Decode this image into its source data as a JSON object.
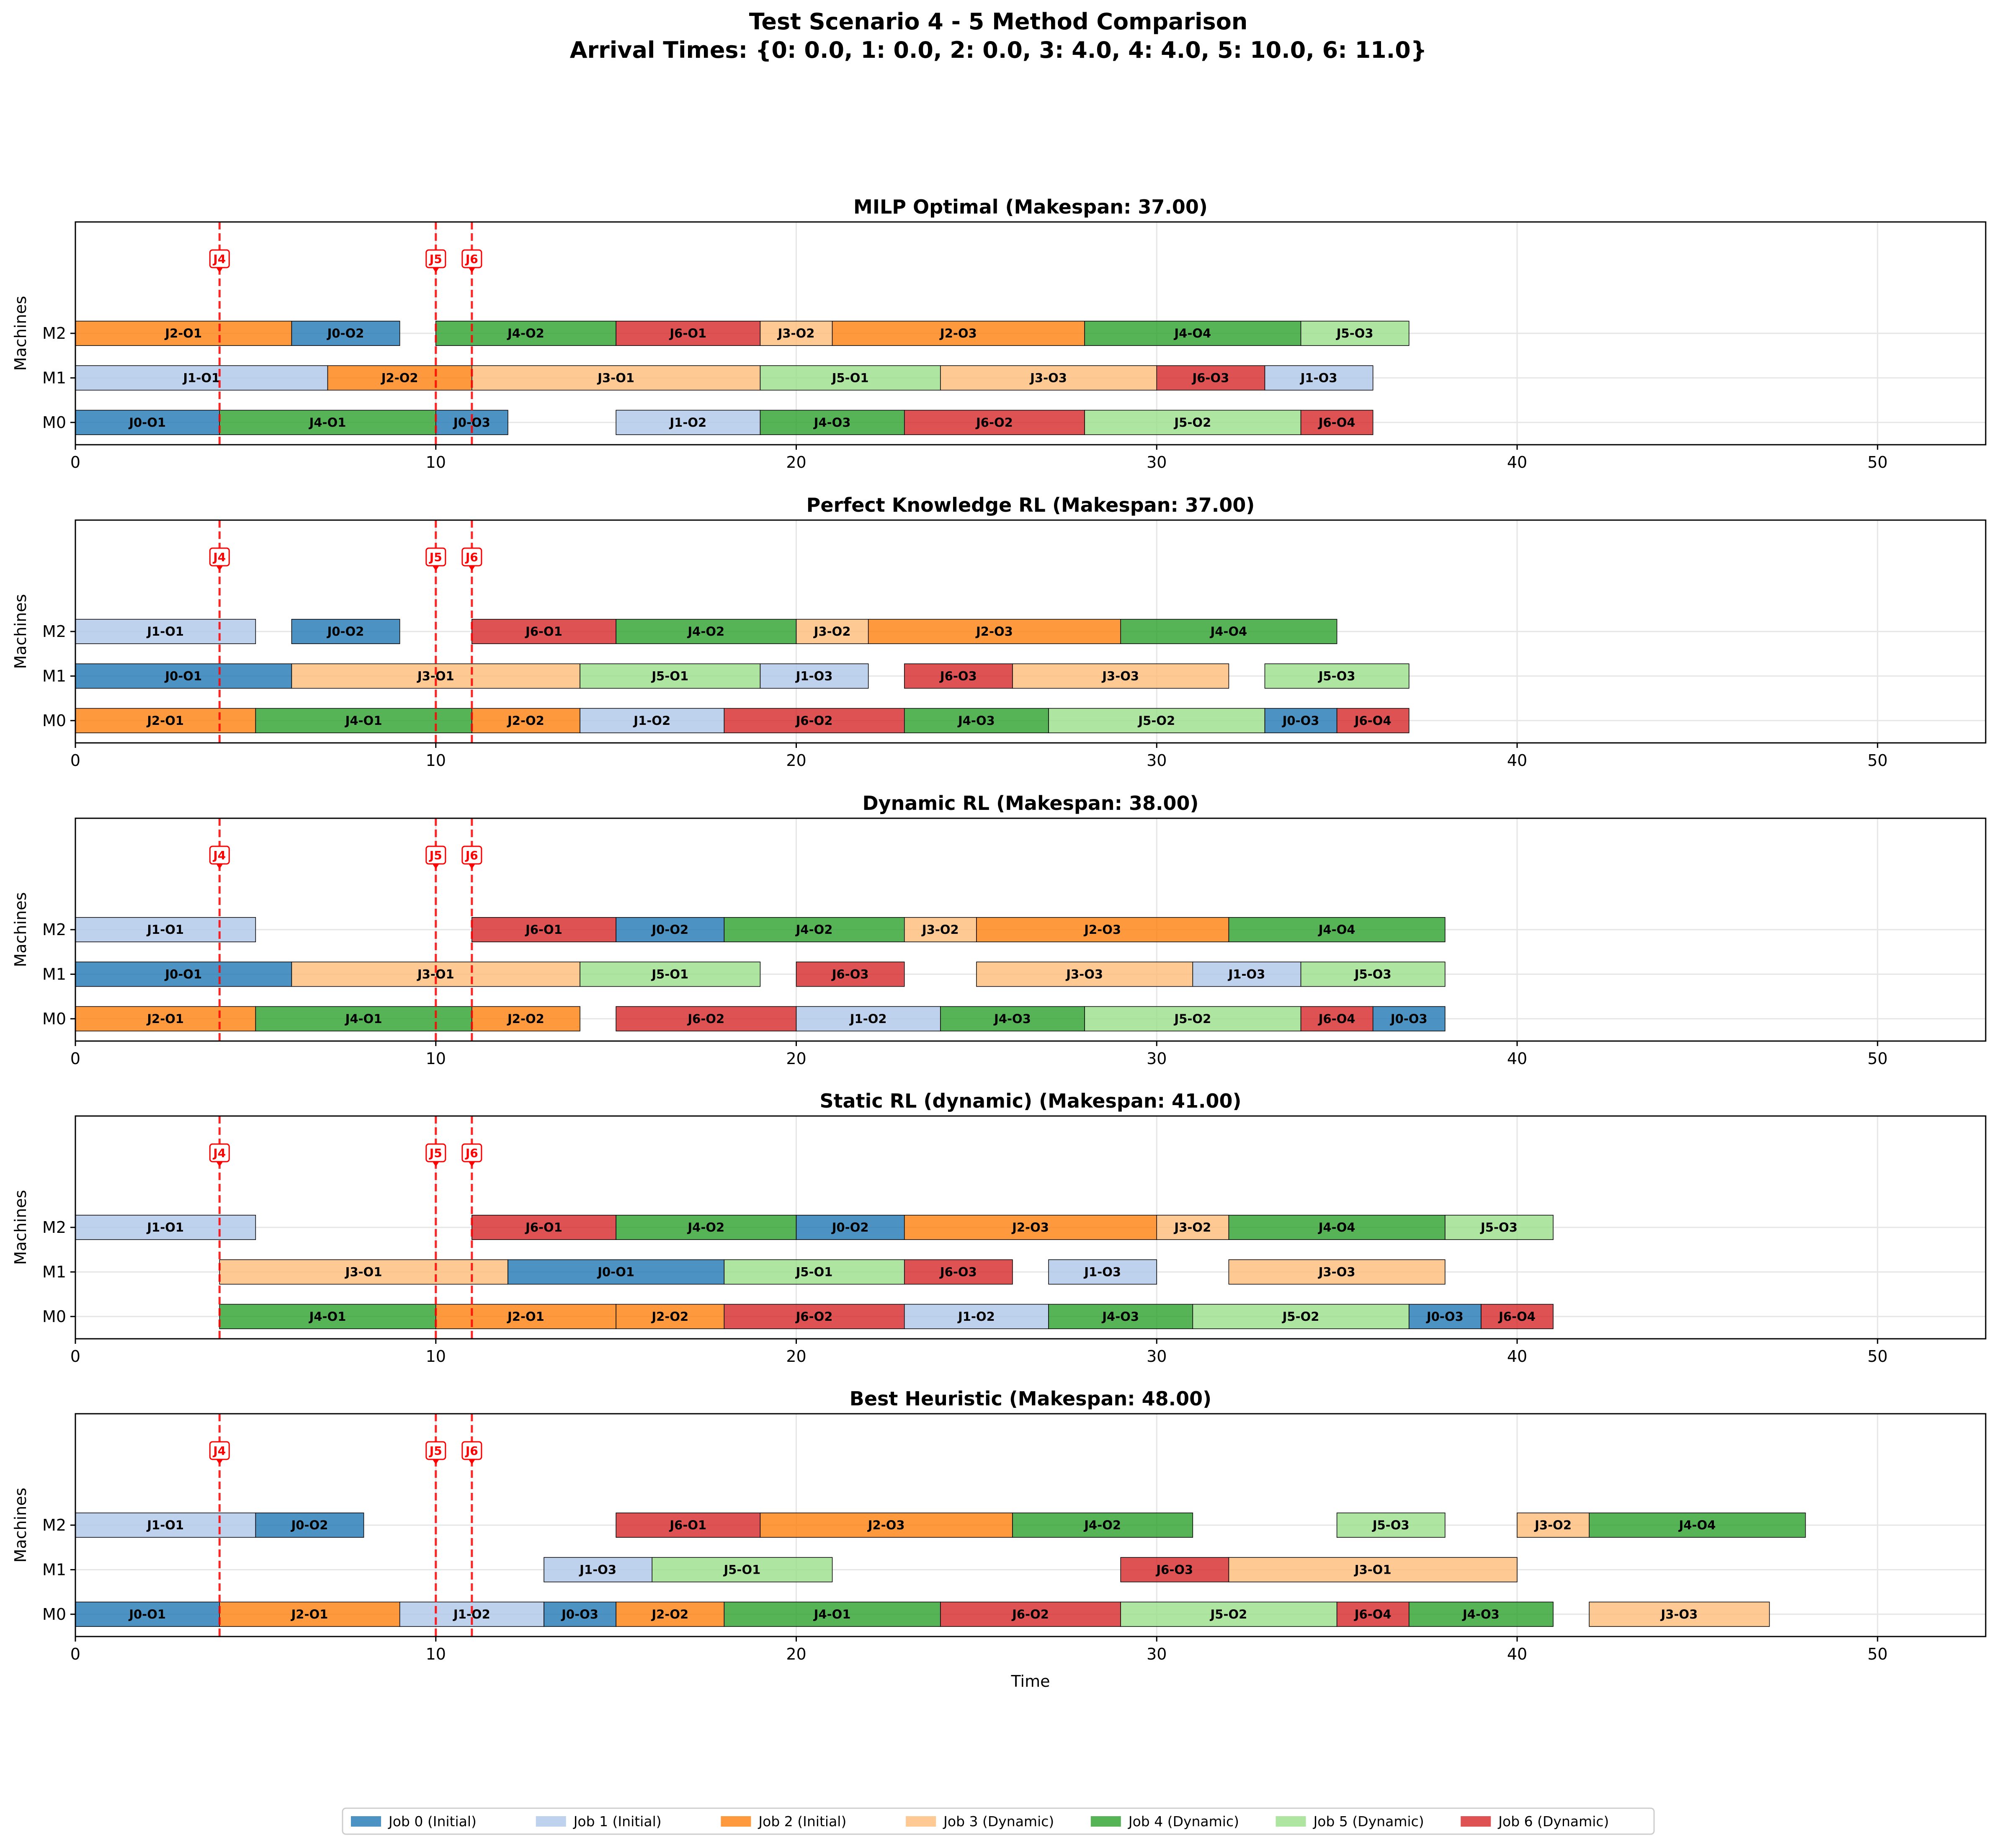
{
  "figure": {
    "title_line1": "Test Scenario 4 - 5 Method Comparison",
    "title_line2": "Arrival Times: {0: 0.0, 1: 0.0, 2: 0.0, 3: 4.0, 4: 4.0, 5: 10.0, 6: 11.0}"
  },
  "legend": [
    {
      "label": "Job 0 (Initial)",
      "color": "#1f77b4"
    },
    {
      "label": "Job 1 (Initial)",
      "color": "#aec7e8"
    },
    {
      "label": "Job 2 (Initial)",
      "color": "#ff7f0e"
    },
    {
      "label": "Job 3 (Dynamic)",
      "color": "#ffbb78"
    },
    {
      "label": "Job 4 (Dynamic)",
      "color": "#2ca02c"
    },
    {
      "label": "Job 5 (Dynamic)",
      "color": "#98df8a"
    },
    {
      "label": "Job 6 (Dynamic)",
      "color": "#d62728"
    }
  ],
  "chart_data": [
    {
      "type": "gantt",
      "title": "MILP Optimal (Makespan: 37.00)",
      "ylabel": "Machines",
      "xlabel": "",
      "xlim": [
        0,
        53
      ],
      "xticks": [
        0,
        10,
        20,
        30,
        40,
        50
      ],
      "machines": [
        "M0",
        "M1",
        "M2"
      ],
      "arrivals": [
        {
          "label": "J4",
          "t": 4
        },
        {
          "label": "J5",
          "t": 10
        },
        {
          "label": "J6",
          "t": 11
        }
      ],
      "tasks": [
        {
          "m": "M2",
          "job": 2,
          "label": "J2-O1",
          "start": 0,
          "end": 6
        },
        {
          "m": "M2",
          "job": 0,
          "label": "J0-O2",
          "start": 6,
          "end": 9
        },
        {
          "m": "M2",
          "job": 4,
          "label": "J4-O2",
          "start": 10,
          "end": 15
        },
        {
          "m": "M2",
          "job": 6,
          "label": "J6-O1",
          "start": 15,
          "end": 19
        },
        {
          "m": "M2",
          "job": 3,
          "label": "J3-O2",
          "start": 19,
          "end": 21
        },
        {
          "m": "M2",
          "job": 2,
          "label": "J2-O3",
          "start": 21,
          "end": 28
        },
        {
          "m": "M2",
          "job": 4,
          "label": "J4-O4",
          "start": 28,
          "end": 34
        },
        {
          "m": "M2",
          "job": 5,
          "label": "J5-O3",
          "start": 34,
          "end": 37
        },
        {
          "m": "M1",
          "job": 1,
          "label": "J1-O1",
          "start": 0,
          "end": 7
        },
        {
          "m": "M1",
          "job": 2,
          "label": "J2-O2",
          "start": 7,
          "end": 11
        },
        {
          "m": "M1",
          "job": 3,
          "label": "J3-O1",
          "start": 11,
          "end": 19
        },
        {
          "m": "M1",
          "job": 5,
          "label": "J5-O1",
          "start": 19,
          "end": 24
        },
        {
          "m": "M1",
          "job": 3,
          "label": "J3-O3",
          "start": 24,
          "end": 30
        },
        {
          "m": "M1",
          "job": 6,
          "label": "J6-O3",
          "start": 30,
          "end": 33
        },
        {
          "m": "M1",
          "job": 1,
          "label": "J1-O3",
          "start": 33,
          "end": 36
        },
        {
          "m": "M0",
          "job": 0,
          "label": "J0-O1",
          "start": 0,
          "end": 4
        },
        {
          "m": "M0",
          "job": 4,
          "label": "J4-O1",
          "start": 4,
          "end": 10
        },
        {
          "m": "M0",
          "job": 0,
          "label": "J0-O3",
          "start": 10,
          "end": 12
        },
        {
          "m": "M0",
          "job": 1,
          "label": "J1-O2",
          "start": 15,
          "end": 19
        },
        {
          "m": "M0",
          "job": 4,
          "label": "J4-O3",
          "start": 19,
          "end": 23
        },
        {
          "m": "M0",
          "job": 6,
          "label": "J6-O2",
          "start": 23,
          "end": 28
        },
        {
          "m": "M0",
          "job": 5,
          "label": "J5-O2",
          "start": 28,
          "end": 34
        },
        {
          "m": "M0",
          "job": 6,
          "label": "J6-O4",
          "start": 34,
          "end": 36
        }
      ]
    },
    {
      "type": "gantt",
      "title": "Perfect Knowledge RL (Makespan: 37.00)",
      "ylabel": "Machines",
      "xlabel": "",
      "xlim": [
        0,
        53
      ],
      "xticks": [
        0,
        10,
        20,
        30,
        40,
        50
      ],
      "machines": [
        "M0",
        "M1",
        "M2"
      ],
      "arrivals": [
        {
          "label": "J4",
          "t": 4
        },
        {
          "label": "J5",
          "t": 10
        },
        {
          "label": "J6",
          "t": 11
        }
      ],
      "tasks": [
        {
          "m": "M2",
          "job": 1,
          "label": "J1-O1",
          "start": 0,
          "end": 5
        },
        {
          "m": "M2",
          "job": 0,
          "label": "J0-O2",
          "start": 6,
          "end": 9
        },
        {
          "m": "M2",
          "job": 6,
          "label": "J6-O1",
          "start": 11,
          "end": 15
        },
        {
          "m": "M2",
          "job": 4,
          "label": "J4-O2",
          "start": 15,
          "end": 20
        },
        {
          "m": "M2",
          "job": 3,
          "label": "J3-O2",
          "start": 20,
          "end": 22
        },
        {
          "m": "M2",
          "job": 2,
          "label": "J2-O3",
          "start": 22,
          "end": 29
        },
        {
          "m": "M2",
          "job": 4,
          "label": "J4-O4",
          "start": 29,
          "end": 35
        },
        {
          "m": "M1",
          "job": 0,
          "label": "J0-O1",
          "start": 0,
          "end": 6
        },
        {
          "m": "M1",
          "job": 3,
          "label": "J3-O1",
          "start": 6,
          "end": 14
        },
        {
          "m": "M1",
          "job": 5,
          "label": "J5-O1",
          "start": 14,
          "end": 19
        },
        {
          "m": "M1",
          "job": 1,
          "label": "J1-O3",
          "start": 19,
          "end": 22
        },
        {
          "m": "M1",
          "job": 6,
          "label": "J6-O3",
          "start": 23,
          "end": 26
        },
        {
          "m": "M1",
          "job": 3,
          "label": "J3-O3",
          "start": 26,
          "end": 32
        },
        {
          "m": "M1",
          "job": 5,
          "label": "J5-O3",
          "start": 33,
          "end": 37
        },
        {
          "m": "M0",
          "job": 2,
          "label": "J2-O1",
          "start": 0,
          "end": 5
        },
        {
          "m": "M0",
          "job": 4,
          "label": "J4-O1",
          "start": 5,
          "end": 11
        },
        {
          "m": "M0",
          "job": 2,
          "label": "J2-O2",
          "start": 11,
          "end": 14
        },
        {
          "m": "M0",
          "job": 1,
          "label": "J1-O2",
          "start": 14,
          "end": 18
        },
        {
          "m": "M0",
          "job": 6,
          "label": "J6-O2",
          "start": 18,
          "end": 23
        },
        {
          "m": "M0",
          "job": 4,
          "label": "J4-O3",
          "start": 23,
          "end": 27
        },
        {
          "m": "M0",
          "job": 5,
          "label": "J5-O2",
          "start": 27,
          "end": 33
        },
        {
          "m": "M0",
          "job": 0,
          "label": "J0-O3",
          "start": 33,
          "end": 35
        },
        {
          "m": "M0",
          "job": 6,
          "label": "J6-O4",
          "start": 35,
          "end": 37
        }
      ]
    },
    {
      "type": "gantt",
      "title": "Dynamic RL (Makespan: 38.00)",
      "ylabel": "Machines",
      "xlabel": "",
      "xlim": [
        0,
        53
      ],
      "xticks": [
        0,
        10,
        20,
        30,
        40,
        50
      ],
      "machines": [
        "M0",
        "M1",
        "M2"
      ],
      "arrivals": [
        {
          "label": "J4",
          "t": 4
        },
        {
          "label": "J5",
          "t": 10
        },
        {
          "label": "J6",
          "t": 11
        }
      ],
      "tasks": [
        {
          "m": "M2",
          "job": 1,
          "label": "J1-O1",
          "start": 0,
          "end": 5
        },
        {
          "m": "M2",
          "job": 6,
          "label": "J6-O1",
          "start": 11,
          "end": 15
        },
        {
          "m": "M2",
          "job": 0,
          "label": "J0-O2",
          "start": 15,
          "end": 18
        },
        {
          "m": "M2",
          "job": 4,
          "label": "J4-O2",
          "start": 18,
          "end": 23
        },
        {
          "m": "M2",
          "job": 3,
          "label": "J3-O2",
          "start": 23,
          "end": 25
        },
        {
          "m": "M2",
          "job": 2,
          "label": "J2-O3",
          "start": 25,
          "end": 32
        },
        {
          "m": "M2",
          "job": 4,
          "label": "J4-O4",
          "start": 32,
          "end": 38
        },
        {
          "m": "M1",
          "job": 0,
          "label": "J0-O1",
          "start": 0,
          "end": 6
        },
        {
          "m": "M1",
          "job": 3,
          "label": "J3-O1",
          "start": 6,
          "end": 14
        },
        {
          "m": "M1",
          "job": 5,
          "label": "J5-O1",
          "start": 14,
          "end": 19
        },
        {
          "m": "M1",
          "job": 6,
          "label": "J6-O3",
          "start": 20,
          "end": 23
        },
        {
          "m": "M1",
          "job": 3,
          "label": "J3-O3",
          "start": 25,
          "end": 31
        },
        {
          "m": "M1",
          "job": 1,
          "label": "J1-O3",
          "start": 31,
          "end": 34
        },
        {
          "m": "M1",
          "job": 5,
          "label": "J5-O3",
          "start": 34,
          "end": 38
        },
        {
          "m": "M0",
          "job": 2,
          "label": "J2-O1",
          "start": 0,
          "end": 5
        },
        {
          "m": "M0",
          "job": 4,
          "label": "J4-O1",
          "start": 5,
          "end": 11
        },
        {
          "m": "M0",
          "job": 2,
          "label": "J2-O2",
          "start": 11,
          "end": 14
        },
        {
          "m": "M0",
          "job": 6,
          "label": "J6-O2",
          "start": 15,
          "end": 20
        },
        {
          "m": "M0",
          "job": 1,
          "label": "J1-O2",
          "start": 20,
          "end": 24
        },
        {
          "m": "M0",
          "job": 4,
          "label": "J4-O3",
          "start": 24,
          "end": 28
        },
        {
          "m": "M0",
          "job": 5,
          "label": "J5-O2",
          "start": 28,
          "end": 34
        },
        {
          "m": "M0",
          "job": 6,
          "label": "J6-O4",
          "start": 34,
          "end": 36
        },
        {
          "m": "M0",
          "job": 0,
          "label": "J0-O3",
          "start": 36,
          "end": 38
        }
      ]
    },
    {
      "type": "gantt",
      "title": "Static RL (dynamic) (Makespan: 41.00)",
      "ylabel": "Machines",
      "xlabel": "",
      "xlim": [
        0,
        53
      ],
      "xticks": [
        0,
        10,
        20,
        30,
        40,
        50
      ],
      "machines": [
        "M0",
        "M1",
        "M2"
      ],
      "arrivals": [
        {
          "label": "J4",
          "t": 4
        },
        {
          "label": "J5",
          "t": 10
        },
        {
          "label": "J6",
          "t": 11
        }
      ],
      "tasks": [
        {
          "m": "M2",
          "job": 1,
          "label": "J1-O1",
          "start": 0,
          "end": 5
        },
        {
          "m": "M2",
          "job": 6,
          "label": "J6-O1",
          "start": 11,
          "end": 15
        },
        {
          "m": "M2",
          "job": 4,
          "label": "J4-O2",
          "start": 15,
          "end": 20
        },
        {
          "m": "M2",
          "job": 0,
          "label": "J0-O2",
          "start": 20,
          "end": 23
        },
        {
          "m": "M2",
          "job": 2,
          "label": "J2-O3",
          "start": 23,
          "end": 30
        },
        {
          "m": "M2",
          "job": 3,
          "label": "J3-O2",
          "start": 30,
          "end": 32
        },
        {
          "m": "M2",
          "job": 4,
          "label": "J4-O4",
          "start": 32,
          "end": 38
        },
        {
          "m": "M2",
          "job": 5,
          "label": "J5-O3",
          "start": 38,
          "end": 41
        },
        {
          "m": "M1",
          "job": 3,
          "label": "J3-O1",
          "start": 4,
          "end": 12
        },
        {
          "m": "M1",
          "job": 0,
          "label": "J0-O1",
          "start": 12,
          "end": 18
        },
        {
          "m": "M1",
          "job": 5,
          "label": "J5-O1",
          "start": 18,
          "end": 23
        },
        {
          "m": "M1",
          "job": 6,
          "label": "J6-O3",
          "start": 23,
          "end": 26
        },
        {
          "m": "M1",
          "job": 1,
          "label": "J1-O3",
          "start": 27,
          "end": 30
        },
        {
          "m": "M1",
          "job": 3,
          "label": "J3-O3",
          "start": 32,
          "end": 38
        },
        {
          "m": "M0",
          "job": 4,
          "label": "J4-O1",
          "start": 4,
          "end": 10
        },
        {
          "m": "M0",
          "job": 2,
          "label": "J2-O1",
          "start": 10,
          "end": 15
        },
        {
          "m": "M0",
          "job": 2,
          "label": "J2-O2",
          "start": 15,
          "end": 18
        },
        {
          "m": "M0",
          "job": 6,
          "label": "J6-O2",
          "start": 18,
          "end": 23
        },
        {
          "m": "M0",
          "job": 1,
          "label": "J1-O2",
          "start": 23,
          "end": 27
        },
        {
          "m": "M0",
          "job": 4,
          "label": "J4-O3",
          "start": 27,
          "end": 31
        },
        {
          "m": "M0",
          "job": 5,
          "label": "J5-O2",
          "start": 31,
          "end": 37
        },
        {
          "m": "M0",
          "job": 0,
          "label": "J0-O3",
          "start": 37,
          "end": 39
        },
        {
          "m": "M0",
          "job": 6,
          "label": "J6-O4",
          "start": 39,
          "end": 41
        }
      ]
    },
    {
      "type": "gantt",
      "title": "Best Heuristic (Makespan: 48.00)",
      "ylabel": "Machines",
      "xlabel": "Time",
      "xlim": [
        0,
        53
      ],
      "xticks": [
        0,
        10,
        20,
        30,
        40,
        50
      ],
      "machines": [
        "M0",
        "M1",
        "M2"
      ],
      "arrivals": [
        {
          "label": "J4",
          "t": 4
        },
        {
          "label": "J5",
          "t": 10
        },
        {
          "label": "J6",
          "t": 11
        }
      ],
      "tasks": [
        {
          "m": "M2",
          "job": 1,
          "label": "J1-O1",
          "start": 0,
          "end": 5
        },
        {
          "m": "M2",
          "job": 0,
          "label": "J0-O2",
          "start": 5,
          "end": 8
        },
        {
          "m": "M2",
          "job": 6,
          "label": "J6-O1",
          "start": 15,
          "end": 19
        },
        {
          "m": "M2",
          "job": 2,
          "label": "J2-O3",
          "start": 19,
          "end": 26
        },
        {
          "m": "M2",
          "job": 4,
          "label": "J4-O2",
          "start": 26,
          "end": 31
        },
        {
          "m": "M2",
          "job": 5,
          "label": "J5-O3",
          "start": 35,
          "end": 38
        },
        {
          "m": "M2",
          "job": 3,
          "label": "J3-O2",
          "start": 40,
          "end": 42
        },
        {
          "m": "M2",
          "job": 4,
          "label": "J4-O4",
          "start": 42,
          "end": 48
        },
        {
          "m": "M1",
          "job": 1,
          "label": "J1-O3",
          "start": 13,
          "end": 16
        },
        {
          "m": "M1",
          "job": 5,
          "label": "J5-O1",
          "start": 16,
          "end": 21
        },
        {
          "m": "M1",
          "job": 6,
          "label": "J6-O3",
          "start": 29,
          "end": 32
        },
        {
          "m": "M1",
          "job": 3,
          "label": "J3-O1",
          "start": 32,
          "end": 40
        },
        {
          "m": "M0",
          "job": 0,
          "label": "J0-O1",
          "start": 0,
          "end": 4
        },
        {
          "m": "M0",
          "job": 2,
          "label": "J2-O1",
          "start": 4,
          "end": 9
        },
        {
          "m": "M0",
          "job": 1,
          "label": "J1-O2",
          "start": 9,
          "end": 13
        },
        {
          "m": "M0",
          "job": 0,
          "label": "J0-O3",
          "start": 13,
          "end": 15
        },
        {
          "m": "M0",
          "job": 2,
          "label": "J2-O2",
          "start": 15,
          "end": 18
        },
        {
          "m": "M0",
          "job": 4,
          "label": "J4-O1",
          "start": 18,
          "end": 24
        },
        {
          "m": "M0",
          "job": 6,
          "label": "J6-O2",
          "start": 24,
          "end": 29
        },
        {
          "m": "M0",
          "job": 5,
          "label": "J5-O2",
          "start": 29,
          "end": 35
        },
        {
          "m": "M0",
          "job": 6,
          "label": "J6-O4",
          "start": 35,
          "end": 37
        },
        {
          "m": "M0",
          "job": 4,
          "label": "J4-O3",
          "start": 37,
          "end": 41
        },
        {
          "m": "M0",
          "job": 3,
          "label": "J3-O3",
          "start": 42,
          "end": 47
        }
      ]
    }
  ]
}
